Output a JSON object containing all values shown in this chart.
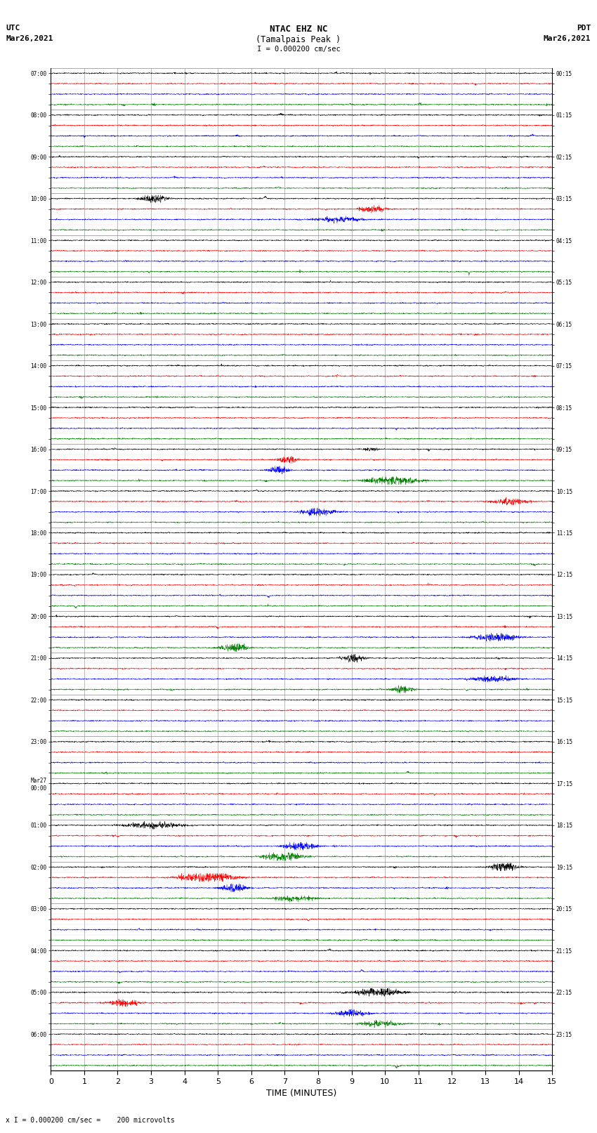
{
  "title_line1": "NTAC EHZ NC",
  "title_line2": "(Tamalpais Peak )",
  "title_line3": "I = 0.000200 cm/sec",
  "left_label_line1": "UTC",
  "left_label_line2": "Mar26,2021",
  "right_label_line1": "PDT",
  "right_label_line2": "Mar26,2021",
  "bottom_label": "TIME (MINUTES)",
  "footnote": "x I = 0.000200 cm/sec =    200 microvolts",
  "xlim": [
    0,
    15
  ],
  "xticks": [
    0,
    1,
    2,
    3,
    4,
    5,
    6,
    7,
    8,
    9,
    10,
    11,
    12,
    13,
    14,
    15
  ],
  "num_rows": 96,
  "row_colors": [
    "black",
    "red",
    "blue",
    "green"
  ],
  "utc_labels": [
    "07:00",
    "",
    "",
    "",
    "08:00",
    "",
    "",
    "",
    "09:00",
    "",
    "",
    "",
    "10:00",
    "",
    "",
    "",
    "11:00",
    "",
    "",
    "",
    "12:00",
    "",
    "",
    "",
    "13:00",
    "",
    "",
    "",
    "14:00",
    "",
    "",
    "",
    "15:00",
    "",
    "",
    "",
    "16:00",
    "",
    "",
    "",
    "17:00",
    "",
    "",
    "",
    "18:00",
    "",
    "",
    "",
    "19:00",
    "",
    "",
    "",
    "20:00",
    "",
    "",
    "",
    "21:00",
    "",
    "",
    "",
    "22:00",
    "",
    "",
    "",
    "23:00",
    "",
    "",
    "",
    "Mar27\n00:00",
    "",
    "",
    "",
    "01:00",
    "",
    "",
    "",
    "02:00",
    "",
    "",
    "",
    "03:00",
    "",
    "",
    "",
    "04:00",
    "",
    "",
    "",
    "05:00",
    "",
    "",
    "",
    "06:00",
    "",
    "",
    ""
  ],
  "pdt_labels": [
    "00:15",
    "",
    "",
    "",
    "01:15",
    "",
    "",
    "",
    "02:15",
    "",
    "",
    "",
    "03:15",
    "",
    "",
    "",
    "04:15",
    "",
    "",
    "",
    "05:15",
    "",
    "",
    "",
    "06:15",
    "",
    "",
    "",
    "07:15",
    "",
    "",
    "",
    "08:15",
    "",
    "",
    "",
    "09:15",
    "",
    "",
    "",
    "10:15",
    "",
    "",
    "",
    "11:15",
    "",
    "",
    "",
    "12:15",
    "",
    "",
    "",
    "13:15",
    "",
    "",
    "",
    "14:15",
    "",
    "",
    "",
    "15:15",
    "",
    "",
    "",
    "16:15",
    "",
    "",
    "",
    "17:15",
    "",
    "",
    "",
    "18:15",
    "",
    "",
    "",
    "19:15",
    "",
    "",
    "",
    "20:15",
    "",
    "",
    "",
    "21:15",
    "",
    "",
    "",
    "22:15",
    "",
    "",
    "",
    "23:15",
    "",
    "",
    ""
  ],
  "background_color": "#ffffff",
  "grid_color": "#888888",
  "trace_amplitude": 0.38,
  "noise_base": 0.06,
  "random_seed": 42
}
